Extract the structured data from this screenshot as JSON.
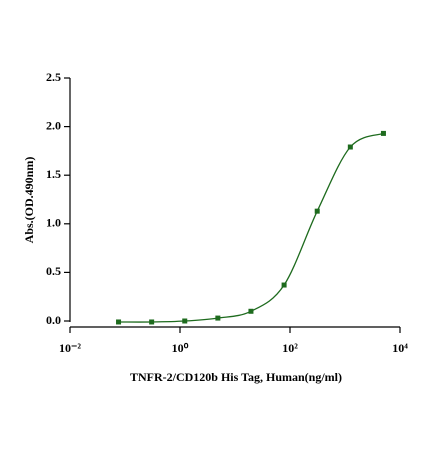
{
  "chart_data": {
    "type": "scatter",
    "x_label": "TNFR-2/CD120b His Tag, Human(ng/ml)",
    "y_label": "Abs.(OD.490nm)",
    "x": [
      0.0763,
      0.305,
      1.22,
      4.88,
      19.5,
      78.1,
      312.5,
      1250,
      5000
    ],
    "series": [
      {
        "color": "#1e6b1e",
        "values": [
          -0.01,
          -0.01,
          0.0,
          0.03,
          0.1,
          0.37,
          1.13,
          1.79,
          1.93
        ]
      }
    ],
    "log_x": true,
    "xlim": [
      0.01,
      10000
    ],
    "xticks": [
      {
        "value": 0.01,
        "label": "10⁻²"
      },
      {
        "value": 1,
        "label": "10⁰"
      },
      {
        "value": 100,
        "label": "10²"
      },
      {
        "value": 10000,
        "label": "10⁴"
      }
    ],
    "ylim": [
      0,
      2.5
    ],
    "yticks": [
      {
        "value": 0,
        "label": "0.0"
      },
      0.5,
      {
        "value": 1,
        "label": "1.0"
      },
      1.5,
      {
        "value": 2,
        "label": "2.0"
      },
      2.5
    ],
    "grid": false
  }
}
